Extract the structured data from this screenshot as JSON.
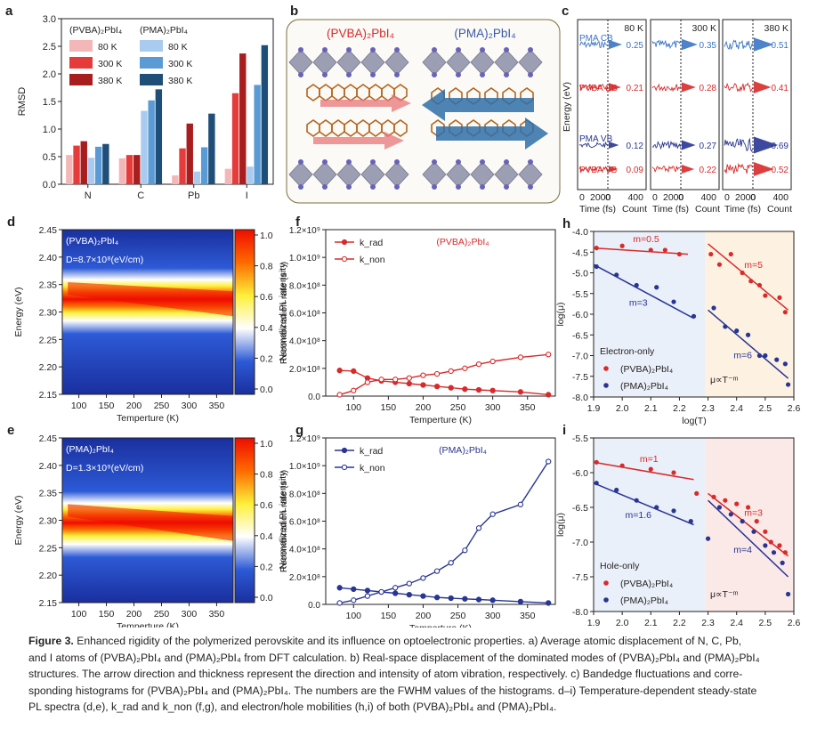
{
  "colors": {
    "pvba": "#d82a2a",
    "pma": "#283593",
    "a_pvba": [
      "#f4b7b7",
      "#e53b3b",
      "#a81d1d"
    ],
    "a_pma": [
      "#a9cbef",
      "#5b9bd5",
      "#1f4e79"
    ],
    "pl_colormap": [
      "#1a2f9e",
      "#2d5ad6",
      "#ffffff",
      "#ffef3a",
      "#ff6a00",
      "#ee0d00"
    ],
    "h_bg_left": "#eaf0f9",
    "h_bg_right": "#fdf1e1",
    "i_bg_left": "#eaf0f9",
    "i_bg_right": "#fbe9e8"
  },
  "chart_data": [
    {
      "panel": "a",
      "type": "bar",
      "ylabel": "RMSD",
      "ylim": [
        0,
        3.0
      ],
      "yticks": [
        "0.0",
        "0.5",
        "1.0",
        "1.5",
        "2.0",
        "2.5",
        "3.0"
      ],
      "categories": [
        "N",
        "C",
        "Pb",
        "I"
      ],
      "legend": {
        "groups": [
          "(PVBA)₂PbI₄",
          "(PMA)₂PbI₄"
        ],
        "temps": [
          "80 K",
          "300 K",
          "380 K"
        ]
      },
      "series": [
        {
          "name": "(PVBA)₂PbI₄ 80 K",
          "values": [
            0.53,
            0.47,
            0.16,
            0.28
          ]
        },
        {
          "name": "(PVBA)₂PbI₄ 300 K",
          "values": [
            0.7,
            0.53,
            0.65,
            1.65
          ]
        },
        {
          "name": "(PVBA)₂PbI₄ 380 K",
          "values": [
            0.78,
            0.53,
            1.1,
            2.37
          ]
        },
        {
          "name": "(PMA)₂PbI₄ 80 K",
          "values": [
            0.48,
            1.33,
            0.23,
            0.32
          ]
        },
        {
          "name": "(PMA)₂PbI₄ 300 K",
          "values": [
            0.68,
            1.52,
            0.67,
            1.8
          ]
        },
        {
          "name": "(PMA)₂PbI₄ 380 K",
          "values": [
            0.73,
            1.72,
            1.28,
            2.52
          ]
        }
      ]
    },
    {
      "panel": "b",
      "type": "diagram",
      "labels": [
        "(PVBA)₂PbI₄",
        "(PMA)₂PbI₄"
      ]
    },
    {
      "panel": "c",
      "type": "line",
      "ylabel": "Energy (eV)",
      "xlabels": [
        "Time (fs)",
        "Count"
      ],
      "xticks_time": [
        "0",
        "2000"
      ],
      "xticks_count": [
        "0",
        "400"
      ],
      "columns": [
        {
          "temp": "80 K",
          "fwhm": [
            0.25,
            0.21,
            0.12,
            0.09
          ]
        },
        {
          "temp": "300 K",
          "fwhm": [
            0.35,
            0.28,
            0.27,
            0.22
          ]
        },
        {
          "temp": "380 K",
          "fwhm": [
            0.51,
            0.41,
            0.69,
            0.52
          ]
        }
      ],
      "rows": [
        "PMA CB",
        "PVBA CB",
        "PMA VB",
        "PVBA VB"
      ]
    },
    {
      "panel": "d",
      "type": "heatmap",
      "label": "(PVBA)₂PbI₄",
      "D_label": "D=8.7×10⁸(eV/cm)",
      "xlabel": "Temperture (K)",
      "ylabel": "Energy (eV)",
      "xlim": [
        70,
        380
      ],
      "ylim": [
        2.15,
        2.45
      ],
      "xticks": [
        "100",
        "150",
        "200",
        "250",
        "300",
        "350"
      ],
      "yticks": [
        "2.15",
        "2.20",
        "2.25",
        "2.30",
        "2.35",
        "2.40",
        "2.45"
      ],
      "colorbar_label": "Normalized PL intensity",
      "colorbar_ticks": [
        "0.0",
        "0.2",
        "0.4",
        "0.6",
        "0.8",
        "1.0"
      ],
      "peak": {
        "x": [
          80,
          380
        ],
        "y": [
          2.343,
          2.315
        ]
      }
    },
    {
      "panel": "e",
      "type": "heatmap",
      "label": "(PMA)₂PbI₄",
      "D_label": "D=1.3×10⁹(eV/cm)",
      "xlabel": "Temperture (K)",
      "ylabel": "Energy (eV)",
      "xlim": [
        70,
        380
      ],
      "ylim": [
        2.15,
        2.45
      ],
      "xticks": [
        "100",
        "150",
        "200",
        "250",
        "300",
        "350"
      ],
      "yticks": [
        "2.15",
        "2.20",
        "2.25",
        "2.30",
        "2.35",
        "2.40",
        "2.45"
      ],
      "colorbar_label": "Normalized PL intensity",
      "colorbar_ticks": [
        "0.0",
        "0.2",
        "0.4",
        "0.6",
        "0.8",
        "1.0"
      ],
      "peak": {
        "x": [
          80,
          380
        ],
        "y": [
          2.318,
          2.285
        ]
      }
    },
    {
      "panel": "f",
      "type": "line",
      "title": "(PVBA)₂PbI₄",
      "xlabel": "Temperture (K)",
      "ylabel": "Recombination rate (s⁻¹)",
      "xlim": [
        60,
        390
      ],
      "ylim": [
        0,
        1200000000.0
      ],
      "xticks": [
        "100",
        "150",
        "200",
        "250",
        "300",
        "350"
      ],
      "yticks": [
        "0.0",
        "2.0×10⁸",
        "4.0×10⁸",
        "6.0×10⁸",
        "8.0×10⁸",
        "1.0×10⁹",
        "1.2×10⁹"
      ],
      "x": [
        80,
        100,
        120,
        140,
        160,
        180,
        200,
        220,
        240,
        260,
        280,
        300,
        340,
        380
      ],
      "series": [
        {
          "name": "k_rad",
          "values": [
            185000000.0,
            180000000.0,
            130000000.0,
            110000000.0,
            100000000.0,
            90000000.0,
            80000000.0,
            70000000.0,
            60000000.0,
            50000000.0,
            45000000.0,
            40000000.0,
            30000000.0,
            10000000.0
          ]
        },
        {
          "name": "k_non",
          "values": [
            10000000.0,
            40000000.0,
            100000000.0,
            120000000.0,
            120000000.0,
            130000000.0,
            150000000.0,
            160000000.0,
            180000000.0,
            200000000.0,
            230000000.0,
            250000000.0,
            280000000.0,
            300000000.0
          ]
        }
      ]
    },
    {
      "panel": "g",
      "type": "line",
      "title": "(PMA)₂PbI₄",
      "xlabel": "Temperture (K)",
      "ylabel": "Recombination rate (s⁻¹)",
      "xlim": [
        60,
        390
      ],
      "ylim": [
        0,
        1200000000.0
      ],
      "xticks": [
        "100",
        "150",
        "200",
        "250",
        "300",
        "350"
      ],
      "yticks": [
        "0.0",
        "2.0×10⁸",
        "4.0×10⁸",
        "6.0×10⁸",
        "8.0×10⁸",
        "1.0×10⁹",
        "1.2×10⁹"
      ],
      "x": [
        80,
        100,
        120,
        140,
        160,
        180,
        200,
        220,
        240,
        260,
        280,
        300,
        340,
        380
      ],
      "series": [
        {
          "name": "k_rad",
          "values": [
            120000000.0,
            110000000.0,
            100000000.0,
            90000000.0,
            80000000.0,
            70000000.0,
            60000000.0,
            50000000.0,
            45000000.0,
            40000000.0,
            35000000.0,
            30000000.0,
            20000000.0,
            10000000.0
          ]
        },
        {
          "name": "k_non",
          "values": [
            10000000.0,
            30000000.0,
            60000000.0,
            90000000.0,
            120000000.0,
            150000000.0,
            190000000.0,
            240000000.0,
            300000000.0,
            390000000.0,
            550000000.0,
            650000000.0,
            720000000.0,
            1030000000.0
          ]
        }
      ]
    },
    {
      "panel": "h",
      "type": "scatter",
      "region_label": "Electron-only",
      "law": "μ∝T⁻ᵐ",
      "xlabel": "log(T)",
      "ylabel": "log(μ)",
      "xlim": [
        1.9,
        2.6
      ],
      "ylim": [
        -8.0,
        -4.0
      ],
      "xticks": [
        "1.9",
        "2.0",
        "2.1",
        "2.2",
        "2.3",
        "2.4",
        "2.5",
        "2.6"
      ],
      "yticks": [
        "-4.0",
        "-4.5",
        "-5.0",
        "-5.5",
        "-6.0",
        "-6.5",
        "-7.0",
        "-7.5",
        "-8.0"
      ],
      "split_x": 2.29,
      "series": [
        {
          "name": "(PVBA)₂PbI₄",
          "points": [
            [
              1.91,
              -4.4
            ],
            [
              2.0,
              -4.35
            ],
            [
              2.1,
              -4.45
            ],
            [
              2.15,
              -4.45
            ],
            [
              2.2,
              -4.55
            ],
            [
              2.31,
              -4.55
            ],
            [
              2.34,
              -4.8
            ],
            [
              2.38,
              -4.55
            ],
            [
              2.42,
              -5.0
            ],
            [
              2.45,
              -5.2
            ],
            [
              2.48,
              -5.3
            ],
            [
              2.5,
              -5.55
            ],
            [
              2.55,
              -5.6
            ],
            [
              2.57,
              -5.95
            ]
          ],
          "fits": [
            {
              "x": [
                1.9,
                2.23
              ],
              "y": [
                -4.4,
                -4.55
              ],
              "label": "m=0.5"
            },
            {
              "x": [
                2.3,
                2.58
              ],
              "y": [
                -4.3,
                -5.9
              ],
              "label": "m=5"
            }
          ]
        },
        {
          "name": "(PMA)₂PbI₄",
          "points": [
            [
              1.91,
              -4.85
            ],
            [
              1.98,
              -5.05
            ],
            [
              2.05,
              -5.3
            ],
            [
              2.12,
              -5.35
            ],
            [
              2.18,
              -5.7
            ],
            [
              2.25,
              -6.05
            ],
            [
              2.32,
              -5.85
            ],
            [
              2.36,
              -6.3
            ],
            [
              2.4,
              -6.4
            ],
            [
              2.44,
              -6.5
            ],
            [
              2.48,
              -7.0
            ],
            [
              2.5,
              -7.0
            ],
            [
              2.54,
              -7.1
            ],
            [
              2.57,
              -7.2
            ],
            [
              2.58,
              -7.7
            ]
          ],
          "fits": [
            {
              "x": [
                1.9,
                2.25
              ],
              "y": [
                -4.8,
                -6.1
              ],
              "label": "m=3"
            },
            {
              "x": [
                2.3,
                2.58
              ],
              "y": [
                -5.9,
                -7.55
              ],
              "label": "m=6"
            }
          ]
        }
      ]
    },
    {
      "panel": "i",
      "type": "scatter",
      "region_label": "Hole-only",
      "law": "μ∝T⁻ᵐ",
      "xlabel": "log(T)",
      "ylabel": "log(μ)",
      "xlim": [
        1.9,
        2.6
      ],
      "ylim": [
        -8.0,
        -5.5
      ],
      "xticks": [
        "1.9",
        "2.0",
        "2.1",
        "2.2",
        "2.3",
        "2.4",
        "2.5",
        "2.6"
      ],
      "yticks": [
        "-5.5",
        "-6.0",
        "-6.5",
        "-7.0",
        "-7.5",
        "-8.0"
      ],
      "split_x": 2.29,
      "series": [
        {
          "name": "(PVBA)₂PbI₄",
          "points": [
            [
              1.91,
              -5.85
            ],
            [
              2.0,
              -5.9
            ],
            [
              2.1,
              -5.95
            ],
            [
              2.18,
              -6.0
            ],
            [
              2.26,
              -6.3
            ],
            [
              2.32,
              -6.35
            ],
            [
              2.36,
              -6.4
            ],
            [
              2.4,
              -6.45
            ],
            [
              2.44,
              -6.5
            ],
            [
              2.47,
              -6.7
            ],
            [
              2.5,
              -6.85
            ],
            [
              2.52,
              -7.0
            ],
            [
              2.55,
              -7.05
            ],
            [
              2.57,
              -7.15
            ]
          ],
          "fits": [
            {
              "x": [
                1.9,
                2.25
              ],
              "y": [
                -5.85,
                -6.1
              ],
              "label": "m=1"
            },
            {
              "x": [
                2.3,
                2.58
              ],
              "y": [
                -6.3,
                -7.2
              ],
              "label": "m=3"
            }
          ]
        },
        {
          "name": "(PMA)₂PbI₄",
          "points": [
            [
              1.91,
              -6.15
            ],
            [
              1.98,
              -6.25
            ],
            [
              2.05,
              -6.4
            ],
            [
              2.12,
              -6.5
            ],
            [
              2.18,
              -6.55
            ],
            [
              2.24,
              -6.7
            ],
            [
              2.3,
              -6.95
            ],
            [
              2.34,
              -6.5
            ],
            [
              2.38,
              -6.6
            ],
            [
              2.42,
              -6.7
            ],
            [
              2.46,
              -6.85
            ],
            [
              2.5,
              -7.05
            ],
            [
              2.53,
              -7.15
            ],
            [
              2.56,
              -7.3
            ],
            [
              2.58,
              -7.75
            ]
          ],
          "fits": [
            {
              "x": [
                1.9,
                2.25
              ],
              "y": [
                -6.15,
                -6.75
              ],
              "label": "m=1.6"
            },
            {
              "x": [
                2.3,
                2.58
              ],
              "y": [
                -6.4,
                -7.5
              ],
              "label": "m=4"
            }
          ]
        }
      ]
    }
  ],
  "caption": {
    "lead": "Figure 3.",
    "lines": [
      "Enhanced rigidity of the polymerized perovskite and its influence on optoelectronic properties. a) Average atomic displacement of N, C, Pb,",
      "and I atoms of (PVBA)₂PbI₄ and (PMA)₂PbI₄ from DFT calculation. b) Real-space displacement of the dominated modes of (PVBA)₂PbI₄ and (PMA)₂PbI₄",
      "structures. The arrow direction and thickness represent the direction and intensity of atom vibration, respectively. c) Bandedge fluctuations and corre-",
      "sponding histograms for (PVBA)₂PbI₄ and (PMA)₂PbI₄. The numbers are the FWHM values of the histograms. d–i) Temperature-dependent steady-state",
      "PL spectra (d,e), k_rad and k_non (f,g), and electron/hole mobilities (h,i) of both (PVBA)₂PbI₄ and (PMA)₂PbI₄."
    ]
  }
}
